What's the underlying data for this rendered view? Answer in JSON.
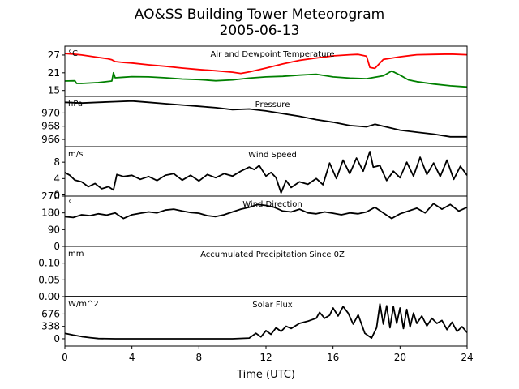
{
  "figure": {
    "title": "AO&SS Building Tower Meteorogram",
    "subtitle": "2005-06-13",
    "xlabel": "Time (UTC)",
    "x_ticks": [
      0,
      4,
      8,
      12,
      16,
      20,
      24
    ],
    "x_range": [
      0,
      24
    ]
  },
  "chart_data": [
    {
      "type": "line",
      "title": "Air and Dewpoint Temperature",
      "unit_label": "°C",
      "ylim": [
        13,
        30
      ],
      "yticks": [
        15,
        21,
        27
      ],
      "series": [
        {
          "color": "#ff0000",
          "x": [
            0,
            0.5,
            1,
            1.5,
            2,
            2.5,
            2.8,
            3,
            3.5,
            4,
            5,
            6,
            7,
            8,
            9,
            10,
            10.5,
            11,
            12,
            13,
            14,
            15,
            16,
            17,
            17.5,
            18,
            18.2,
            18.5,
            19,
            20,
            21,
            22,
            23,
            24
          ],
          "y": [
            27.5,
            27.3,
            27.0,
            26.6,
            26.2,
            25.8,
            25.4,
            24.8,
            24.5,
            24.3,
            23.7,
            23.2,
            22.6,
            22.1,
            21.7,
            21.2,
            20.8,
            21.3,
            22.6,
            24.0,
            25.2,
            26.0,
            26.7,
            27.1,
            27.2,
            26.6,
            22.8,
            22.5,
            25.5,
            26.4,
            27.1,
            27.2,
            27.3,
            27.1
          ]
        },
        {
          "color": "#008000",
          "x": [
            0,
            0.6,
            0.7,
            1,
            2,
            2.8,
            2.9,
            3.0,
            3.5,
            4,
            5,
            6,
            7,
            8,
            9,
            10,
            11,
            12,
            13,
            14,
            15,
            16,
            17,
            18,
            19,
            19.5,
            20,
            20.5,
            21,
            22,
            23,
            24
          ],
          "y": [
            18.2,
            18.3,
            17.4,
            17.4,
            17.7,
            18.2,
            21.0,
            19.3,
            19.5,
            19.7,
            19.6,
            19.3,
            18.9,
            18.7,
            18.3,
            18.6,
            19.2,
            19.6,
            19.8,
            20.2,
            20.5,
            19.6,
            19.2,
            19.0,
            20.0,
            21.6,
            20.2,
            18.6,
            18.0,
            17.2,
            16.6,
            16.2
          ]
        }
      ]
    },
    {
      "type": "line",
      "title": "Pressure",
      "unit_label": "hPa",
      "ylim": [
        964.9,
        972.5
      ],
      "yticks": [
        966,
        968,
        970
      ],
      "series": [
        {
          "color": "#000000",
          "x": [
            0,
            1,
            2,
            3,
            4,
            5,
            6,
            7,
            8,
            9,
            10,
            11,
            12,
            13,
            14,
            15,
            16,
            17,
            18,
            18.5,
            19,
            20,
            21,
            22,
            23,
            24
          ],
          "y": [
            971.6,
            971.5,
            971.6,
            971.7,
            971.8,
            971.6,
            971.4,
            971.2,
            971.0,
            970.8,
            970.5,
            970.6,
            970.3,
            969.9,
            969.5,
            969.0,
            968.6,
            968.1,
            967.9,
            968.3,
            968.0,
            967.4,
            967.1,
            966.8,
            966.4,
            966.4
          ]
        }
      ]
    },
    {
      "type": "line",
      "title": "Wind Speed",
      "unit_label": "m/s",
      "ylim": [
        -0.3,
        11.8
      ],
      "yticks": [
        0,
        4,
        8
      ],
      "series": [
        {
          "color": "#000000",
          "x": [
            0,
            0.3,
            0.6,
            1,
            1.4,
            1.8,
            2.2,
            2.6,
            2.9,
            3.1,
            3.5,
            4,
            4.5,
            5,
            5.5,
            6,
            6.5,
            7,
            7.5,
            8,
            8.5,
            9,
            9.5,
            10,
            10.5,
            11,
            11.3,
            11.6,
            12,
            12.3,
            12.6,
            12.9,
            13.2,
            13.5,
            14,
            14.5,
            15,
            15.4,
            15.8,
            16.2,
            16.6,
            17,
            17.4,
            17.8,
            18.2,
            18.4,
            18.8,
            19.2,
            19.6,
            20,
            20.4,
            20.8,
            21.2,
            21.6,
            22,
            22.4,
            22.8,
            23.2,
            23.6,
            24
          ],
          "y": [
            5.5,
            4.8,
            3.6,
            3.2,
            2.0,
            2.8,
            1.5,
            2.0,
            1.2,
            5.0,
            4.5,
            4.8,
            3.8,
            4.5,
            3.5,
            4.8,
            5.2,
            3.6,
            4.8,
            3.4,
            5.0,
            4.2,
            5.2,
            4.6,
            5.8,
            6.8,
            6.2,
            7.2,
            4.6,
            5.5,
            4.2,
            0.5,
            3.5,
            1.8,
            3.2,
            2.6,
            4.0,
            2.5,
            7.8,
            4.0,
            8.5,
            5.2,
            9.0,
            5.8,
            10.6,
            6.8,
            7.2,
            3.5,
            5.8,
            4.2,
            8.0,
            4.6,
            9.2,
            5.0,
            7.8,
            4.5,
            8.5,
            3.8,
            7.0,
            4.8
          ]
        }
      ]
    },
    {
      "type": "line",
      "title": "Wind Direction",
      "unit_label": "°",
      "ylim": [
        0,
        270
      ],
      "yticks": [
        0,
        90,
        180,
        270
      ],
      "series": [
        {
          "color": "#000000",
          "x": [
            0,
            0.5,
            1,
            1.5,
            2,
            2.5,
            3,
            3.5,
            4,
            4.5,
            5,
            5.5,
            6,
            6.5,
            7,
            7.5,
            8,
            8.5,
            9,
            9.5,
            10,
            10.5,
            11,
            11.5,
            12,
            12.5,
            13,
            13.5,
            14,
            14.5,
            15,
            15.5,
            16,
            16.5,
            17,
            17.5,
            18,
            18.5,
            19,
            19.5,
            20,
            20.5,
            21,
            21.5,
            22,
            22.5,
            23,
            23.5,
            24
          ],
          "y": [
            160,
            155,
            170,
            165,
            175,
            168,
            180,
            150,
            170,
            178,
            185,
            180,
            195,
            200,
            190,
            182,
            178,
            165,
            160,
            170,
            185,
            200,
            210,
            225,
            220,
            210,
            190,
            185,
            200,
            180,
            175,
            185,
            178,
            170,
            180,
            175,
            185,
            210,
            180,
            150,
            175,
            190,
            205,
            180,
            230,
            200,
            225,
            190,
            210
          ]
        }
      ]
    },
    {
      "type": "line",
      "title": "Accumulated Precipitation Since 0Z",
      "unit_label": "mm",
      "ylim": [
        0,
        0.15
      ],
      "yticks": [
        0.0,
        0.05,
        0.1
      ],
      "ytick_labels": [
        "0.00",
        "0.05",
        "0.10"
      ],
      "series": [
        {
          "color": "#000000",
          "x": [
            0,
            24
          ],
          "y": [
            0,
            0
          ]
        }
      ]
    },
    {
      "type": "line",
      "title": "Solar Flux",
      "unit_label": "W/m^2",
      "ylim": [
        -200,
        1150
      ],
      "yticks": [
        0,
        338,
        676
      ],
      "series": [
        {
          "color": "#000000",
          "x": [
            0,
            0.5,
            1,
            1.5,
            2,
            3,
            4,
            5,
            6,
            7,
            8,
            9,
            10,
            11,
            11.4,
            11.7,
            12,
            12.3,
            12.6,
            12.9,
            13.2,
            13.5,
            14,
            14.5,
            15,
            15.2,
            15.5,
            15.8,
            16,
            16.3,
            16.6,
            16.9,
            17.2,
            17.5,
            17.9,
            18.3,
            18.6,
            18.8,
            19.0,
            19.2,
            19.4,
            19.6,
            19.8,
            20.0,
            20.2,
            20.4,
            20.6,
            20.8,
            21.0,
            21.3,
            21.6,
            21.9,
            22.2,
            22.5,
            22.8,
            23.1,
            23.4,
            23.7,
            24
          ],
          "y": [
            150,
            100,
            60,
            30,
            5,
            0,
            0,
            0,
            0,
            0,
            0,
            0,
            0,
            20,
            150,
            50,
            220,
            120,
            300,
            200,
            340,
            280,
            420,
            480,
            560,
            720,
            560,
            640,
            840,
            620,
            880,
            700,
            400,
            650,
            150,
            20,
            300,
            950,
            400,
            900,
            300,
            880,
            420,
            840,
            280,
            800,
            320,
            700,
            420,
            620,
            350,
            560,
            420,
            500,
            250,
            450,
            200,
            330,
            170
          ]
        }
      ]
    }
  ]
}
